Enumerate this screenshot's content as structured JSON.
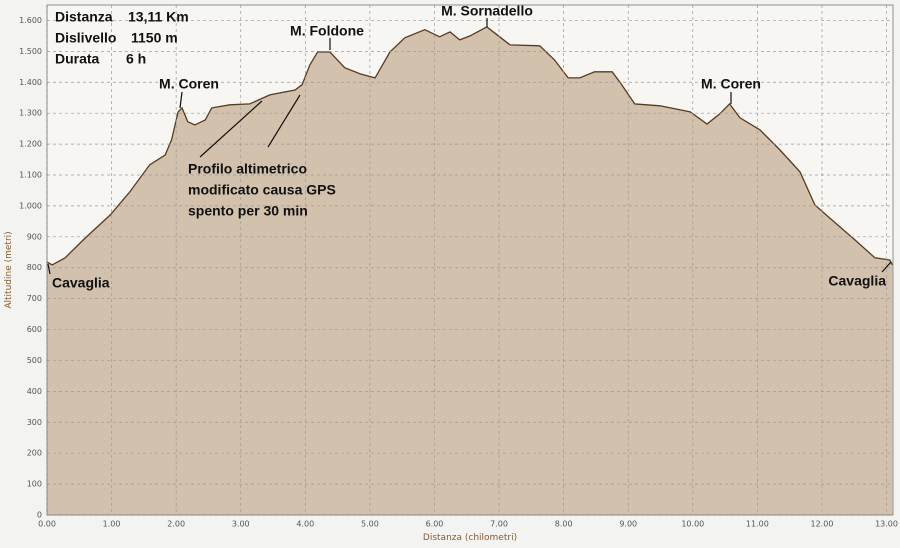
{
  "chart_data": {
    "type": "area",
    "x_label": "Distanza (chilometri)",
    "y_label": "Altitudine (metri)",
    "color": "#d2c1ad",
    "line_color": "#5a3a1e",
    "grid": true,
    "info": [
      {
        "label": "Distanza",
        "value": "13,11 Km"
      },
      {
        "label": "Dislivello",
        "value": "1150 m"
      },
      {
        "label": "Durata",
        "value": "6 h"
      }
    ],
    "annotations": [
      "M. Sornadello",
      "M. Foldone",
      "M. Coren",
      "M. Coren",
      "Cavaglia",
      "Cavaglia"
    ],
    "note": [
      "Profilo altimetrico",
      "modificato causa GPS",
      "spento per 30 min"
    ],
    "x": [
      0,
      0.08,
      0.28,
      0.59,
      0.98,
      1.28,
      1.59,
      1.83,
      1.93,
      2.03,
      2.09,
      2.18,
      2.29,
      2.45,
      2.55,
      2.83,
      3.14,
      3.45,
      3.84,
      3.95,
      4.07,
      4.19,
      4.38,
      4.61,
      4.85,
      5.08,
      5.31,
      5.54,
      5.85,
      6.08,
      6.24,
      6.39,
      6.55,
      6.81,
      6.93,
      7.17,
      7.63,
      7.86,
      8.07,
      8.25,
      8.48,
      8.75,
      8.87,
      9.1,
      9.49,
      9.96,
      10.22,
      10.42,
      10.57,
      10.73,
      11.04,
      11.35,
      11.66,
      11.89,
      12.12,
      12.51,
      12.82,
      13.05,
      13.09
    ],
    "y": [
      819,
      809,
      832,
      896,
      971,
      1045,
      1133,
      1165,
      1214,
      1304,
      1317,
      1272,
      1262,
      1278,
      1317,
      1327,
      1330,
      1359,
      1375,
      1392,
      1456,
      1498,
      1498,
      1447,
      1427,
      1414,
      1498,
      1544,
      1570,
      1547,
      1563,
      1537,
      1550,
      1579,
      1560,
      1521,
      1518,
      1472,
      1414,
      1414,
      1434,
      1434,
      1401,
      1330,
      1324,
      1304,
      1265,
      1298,
      1330,
      1285,
      1246,
      1181,
      1110,
      1003,
      961,
      890,
      832,
      825,
      809
    ],
    "xlim": [
      0,
      13.1
    ],
    "ylim": [
      0,
      1650
    ],
    "xticks": [
      {
        "value": 0,
        "label": "0.00"
      },
      {
        "value": 1,
        "label": "1.00"
      },
      {
        "value": 2,
        "label": "2.00"
      },
      {
        "value": 3,
        "label": "3.00"
      },
      {
        "value": 4,
        "label": "4.00"
      },
      {
        "value": 5,
        "label": "5.00"
      },
      {
        "value": 6,
        "label": "6.00"
      },
      {
        "value": 7,
        "label": "7.00"
      },
      {
        "value": 8,
        "label": "8.00"
      },
      {
        "value": 9,
        "label": "9.00"
      },
      {
        "value": 10,
        "label": "10.00"
      },
      {
        "value": 11,
        "label": "11.00"
      },
      {
        "value": 12,
        "label": "12.00"
      },
      {
        "value": 13,
        "label": "13.00"
      }
    ],
    "yticks": [
      0,
      100,
      200,
      300,
      400,
      500,
      600,
      700,
      800,
      900,
      {
        "value": 1000,
        "label": "1.000"
      },
      {
        "value": 1100,
        "label": "1.100"
      },
      {
        "value": 1200,
        "label": "1.200"
      },
      {
        "value": 1300,
        "label": "1.300"
      },
      {
        "value": 1400,
        "label": "1.400"
      },
      {
        "value": 1500,
        "label": "1.500"
      },
      {
        "value": 1600,
        "label": "1.600"
      }
    ]
  }
}
